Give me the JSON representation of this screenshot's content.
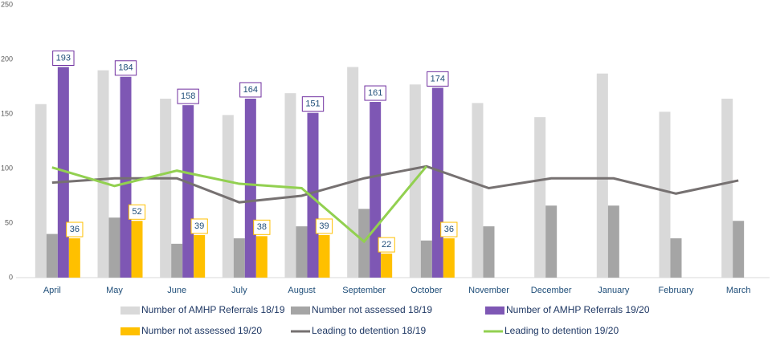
{
  "chart_data": {
    "type": "bar",
    "categories": [
      "April",
      "May",
      "June",
      "July",
      "August",
      "September",
      "October",
      "November",
      "December",
      "January",
      "February",
      "March"
    ],
    "ylim": [
      0,
      250
    ],
    "yticks": [
      0,
      50,
      100,
      150,
      200,
      250
    ],
    "series": [
      {
        "name": "Number of AMHP Referrals 18/19",
        "type": "bar",
        "color": "#d9d9d9",
        "values": [
          159,
          190,
          164,
          149,
          169,
          193,
          177,
          160,
          147,
          187,
          152,
          164
        ]
      },
      {
        "name": "Number not assessed 18/19",
        "type": "bar",
        "color": "#a5a5a5",
        "values": [
          40,
          55,
          31,
          36,
          47,
          63,
          34,
          47,
          66,
          66,
          36,
          52
        ]
      },
      {
        "name": "Number of AMHP Referrals 19/20",
        "type": "bar",
        "color": "#7e57b4",
        "labels": true,
        "label_color": "#7030a0",
        "values": [
          193,
          184,
          158,
          164,
          151,
          161,
          174,
          null,
          null,
          null,
          null,
          null
        ]
      },
      {
        "name": "Number not assessed 19/20",
        "type": "bar",
        "color": "#ffc000",
        "labels": true,
        "label_color": "#ffc000",
        "values": [
          36,
          52,
          39,
          38,
          39,
          22,
          36,
          null,
          null,
          null,
          null,
          null
        ]
      },
      {
        "name": "Leading to detention 18/19",
        "type": "line",
        "color": "#767171",
        "values": [
          87,
          91,
          91,
          69,
          75,
          91,
          102,
          82,
          91,
          91,
          77,
          89
        ]
      },
      {
        "name": "Leading to detention 19/20",
        "type": "line",
        "color": "#92d050",
        "values": [
          101,
          84,
          98,
          86,
          82,
          33,
          102,
          null,
          null,
          null,
          null,
          null
        ]
      }
    ]
  }
}
